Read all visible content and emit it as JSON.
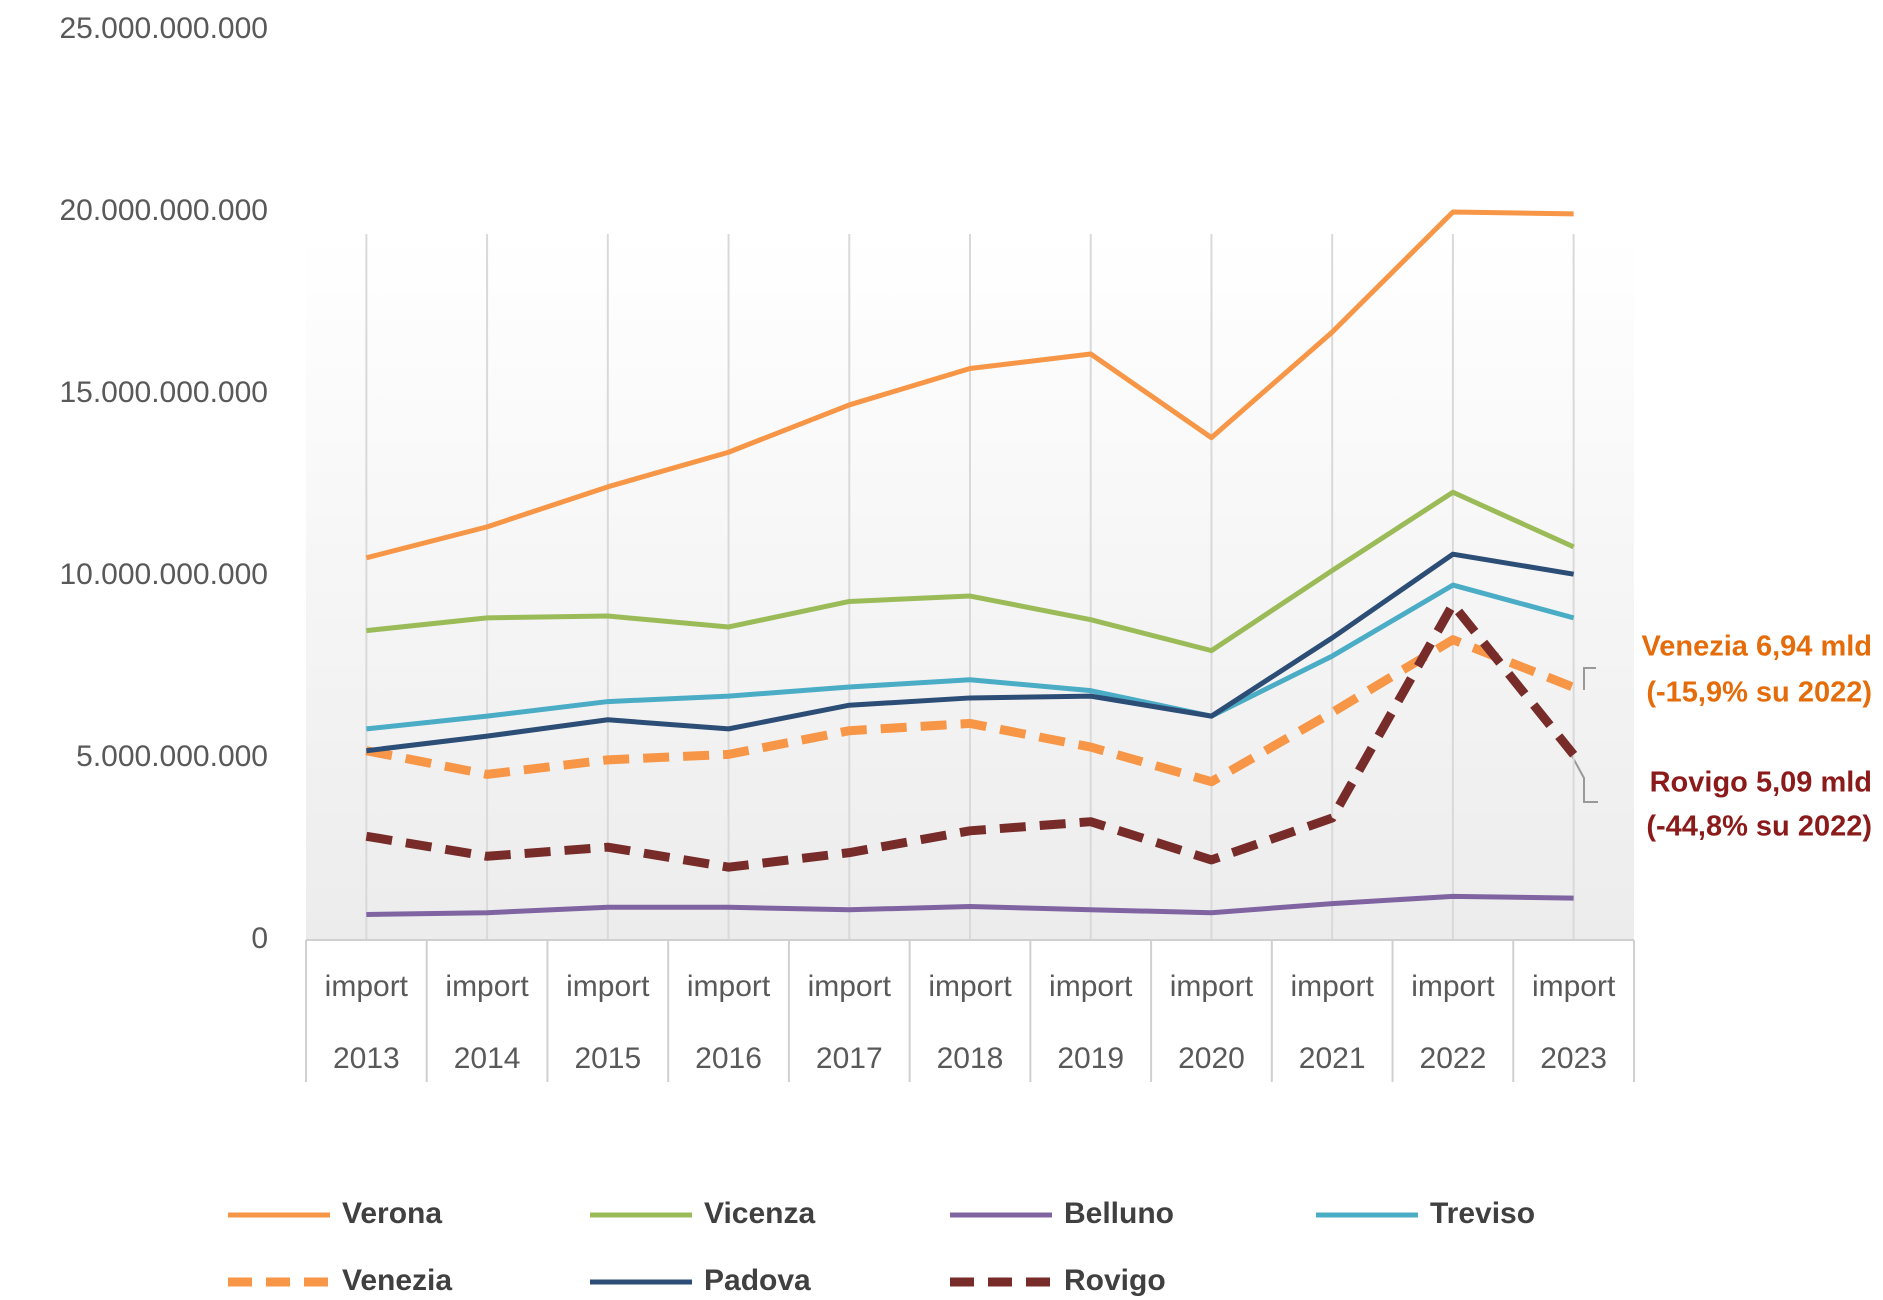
{
  "chart_data": {
    "type": "line",
    "categories": [
      [
        "import",
        "2013"
      ],
      [
        "import",
        "2014"
      ],
      [
        "import",
        "2015"
      ],
      [
        "import",
        "2016"
      ],
      [
        "import",
        "2017"
      ],
      [
        "import",
        "2018"
      ],
      [
        "import",
        "2019"
      ],
      [
        "import",
        "2020"
      ],
      [
        "import",
        "2021"
      ],
      [
        "import",
        "2022"
      ],
      [
        "import",
        "2023"
      ]
    ],
    "series": [
      {
        "name": "Verona",
        "color": "#f79646",
        "dash": false,
        "values": [
          10500000000,
          11350000000,
          12450000000,
          13400000000,
          14700000000,
          15700000000,
          16100000000,
          13800000000,
          16700000000,
          20000000000,
          19950000000
        ]
      },
      {
        "name": "Vicenza",
        "color": "#9bbb59",
        "dash": false,
        "values": [
          8500000000,
          8850000000,
          8900000000,
          8600000000,
          9300000000,
          9450000000,
          8800000000,
          7950000000,
          10150000000,
          12300000000,
          10800000000
        ]
      },
      {
        "name": "Belluno",
        "color": "#8064a2",
        "dash": false,
        "values": [
          700000000,
          750000000,
          900000000,
          900000000,
          830000000,
          920000000,
          830000000,
          750000000,
          1000000000,
          1200000000,
          1150000000
        ]
      },
      {
        "name": "Treviso",
        "color": "#4bacc6",
        "dash": false,
        "values": [
          5800000000,
          6150000000,
          6550000000,
          6700000000,
          6950000000,
          7150000000,
          6850000000,
          6150000000,
          7800000000,
          9750000000,
          8850000000
        ]
      },
      {
        "name": "Venezia",
        "color": "#f79646",
        "dash": true,
        "values": [
          5200000000,
          4550000000,
          4950000000,
          5100000000,
          5750000000,
          5950000000,
          5300000000,
          4350000000,
          6250000000,
          8250000000,
          6940000000
        ]
      },
      {
        "name": "Padova",
        "color": "#2c4d75",
        "dash": false,
        "values": [
          5200000000,
          5600000000,
          6050000000,
          5800000000,
          6450000000,
          6650000000,
          6700000000,
          6150000000,
          8300000000,
          10600000000,
          10050000000
        ]
      },
      {
        "name": "Rovigo",
        "color": "#772c2a",
        "dash": true,
        "values": [
          2850000000,
          2300000000,
          2550000000,
          2000000000,
          2400000000,
          3000000000,
          3250000000,
          2200000000,
          3350000000,
          9220000000,
          5090000000
        ]
      }
    ],
    "ylim": [
      0,
      25000000000
    ],
    "yticks": [
      0,
      {
        "value": 5000000000,
        "label": "5.000.000.000"
      },
      {
        "value": 10000000000,
        "label": "10.000.000.000"
      },
      {
        "value": 15000000000,
        "label": "15.000.000.000"
      },
      {
        "value": 20000000000,
        "label": "20.000.000.000"
      },
      {
        "value": 25000000000,
        "label": "25.000.000.000"
      }
    ],
    "annotations": [
      {
        "text": [
          "Venezia 6,94 mld",
          "(-15,9% su 2022)"
        ],
        "color": "#e46c0a"
      },
      {
        "text": [
          "Rovigo 5,09 mld",
          "(-44,8% su 2022)"
        ],
        "color": "#8b1a1a"
      }
    ]
  }
}
